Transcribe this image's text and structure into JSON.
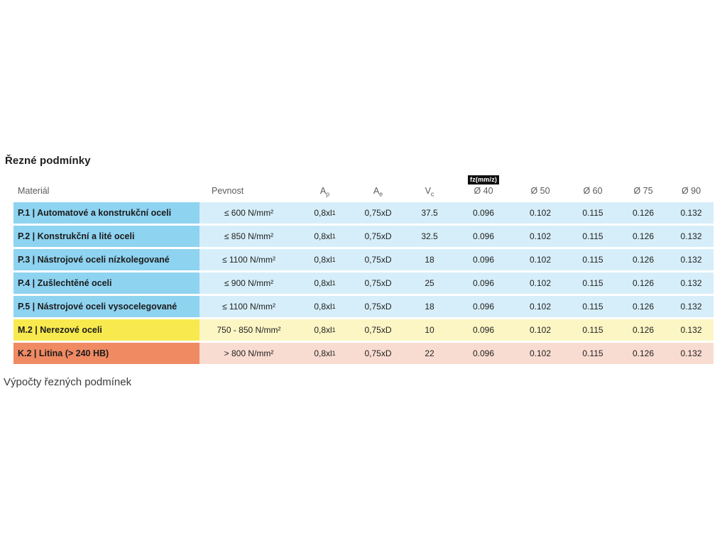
{
  "title": "Řezné podmínky",
  "footer": "Výpočty řezných podmínek",
  "table": {
    "fz_badge": "fz(mm/z)",
    "colors": {
      "blue_dark": "#8ed3f0",
      "blue_light": "#d6eef9",
      "yellow_dark": "#f8ea4e",
      "yellow_light": "#fcf6c5",
      "orange_dark": "#f08a63",
      "orange_light": "#f9dcd1",
      "badge_bg": "#101010",
      "badge_text": "#ffffff"
    },
    "headers": {
      "material": "Materiál",
      "pevnost": "Pevnost",
      "ap": {
        "base": "A",
        "sub": "p"
      },
      "ae": {
        "base": "A",
        "sub": "e"
      },
      "vc": {
        "base": "V",
        "sub": "c"
      },
      "d40": "Ø 40",
      "d50": "Ø 50",
      "d60": "Ø 60",
      "d75": "Ø 75",
      "d90": "Ø 90"
    },
    "rows": [
      {
        "theme": "blue",
        "material": "P.1 | Automatové a konstrukční oceli",
        "pevnost": "≤ 600 N/mm²",
        "ap": {
          "base": "0,8xl",
          "sub": "1"
        },
        "ae": "0,75xD",
        "vc": "37.5",
        "d40": "0.096",
        "d50": "0.102",
        "d60": "0.115",
        "d75": "0.126",
        "d90": "0.132"
      },
      {
        "theme": "blue",
        "material": "P.2 | Konstrukční a lité oceli",
        "pevnost": "≤ 850 N/mm²",
        "ap": {
          "base": "0,8xl",
          "sub": "1"
        },
        "ae": "0,75xD",
        "vc": "32.5",
        "d40": "0.096",
        "d50": "0.102",
        "d60": "0.115",
        "d75": "0.126",
        "d90": "0.132"
      },
      {
        "theme": "blue",
        "material": "P.3 | Nástrojové oceli nízkolegované",
        "pevnost": "≤ 1100 N/mm²",
        "ap": {
          "base": "0,8xl",
          "sub": "1"
        },
        "ae": "0,75xD",
        "vc": "18",
        "d40": "0.096",
        "d50": "0.102",
        "d60": "0.115",
        "d75": "0.126",
        "d90": "0.132"
      },
      {
        "theme": "blue",
        "material": "P.4 | Zušlechtěné oceli",
        "pevnost": "≤ 900 N/mm²",
        "ap": {
          "base": "0,8xl",
          "sub": "1"
        },
        "ae": "0,75xD",
        "vc": "25",
        "d40": "0.096",
        "d50": "0.102",
        "d60": "0.115",
        "d75": "0.126",
        "d90": "0.132"
      },
      {
        "theme": "blue",
        "material": "P.5 | Nástrojové oceli vysocelegované",
        "pevnost": "≤ 1100 N/mm²",
        "ap": {
          "base": "0,8xl",
          "sub": "1"
        },
        "ae": "0,75xD",
        "vc": "18",
        "d40": "0.096",
        "d50": "0.102",
        "d60": "0.115",
        "d75": "0.126",
        "d90": "0.132"
      },
      {
        "theme": "yellow",
        "material": "M.2 | Nerezové oceli",
        "pevnost": "750 - 850 N/mm²",
        "ap": {
          "base": "0,8xl",
          "sub": "1"
        },
        "ae": "0,75xD",
        "vc": "10",
        "d40": "0.096",
        "d50": "0.102",
        "d60": "0.115",
        "d75": "0.126",
        "d90": "0.132"
      },
      {
        "theme": "orange",
        "material": "K.2 | Litina (> 240 HB)",
        "pevnost": "> 800 N/mm²",
        "ap": {
          "base": "0,8xl",
          "sub": "1"
        },
        "ae": "0,75xD",
        "vc": "22",
        "d40": "0.096",
        "d50": "0.102",
        "d60": "0.115",
        "d75": "0.126",
        "d90": "0.132"
      }
    ]
  }
}
